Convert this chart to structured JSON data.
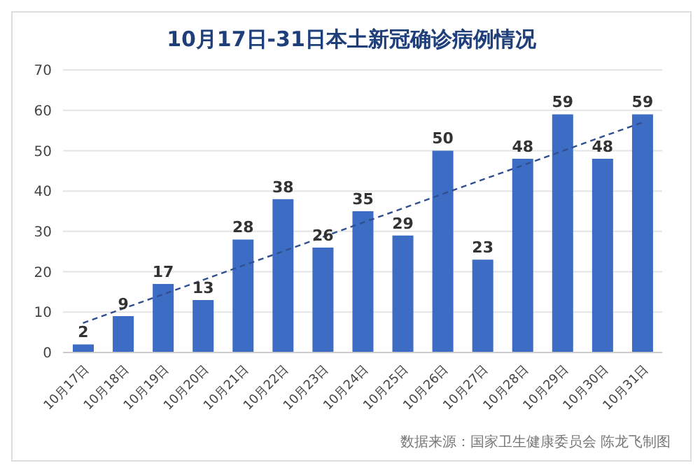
{
  "chart_data": {
    "type": "bar",
    "title": "10月17日-31日本土新冠确诊病例情况",
    "categories": [
      "10月17日",
      "10月18日",
      "10月19日",
      "10月20日",
      "10月21日",
      "10月22日",
      "10月23日",
      "10月24日",
      "10月25日",
      "10月26日",
      "10月27日",
      "10月28日",
      "10月29日",
      "10月30日",
      "10月31日"
    ],
    "series": [
      {
        "color": "#3d6cc4",
        "values": [
          2,
          9,
          17,
          13,
          28,
          38,
          26,
          35,
          29,
          50,
          23,
          48,
          59,
          48,
          59
        ],
        "value_labels": [
          "2",
          "9",
          "17",
          "13",
          "28",
          "38",
          "26",
          "35",
          "29",
          "50",
          "23",
          "48",
          "59",
          "48",
          "59"
        ]
      },
      {
        "type": "line",
        "color": "#2f4f8f",
        "line_style": "dashed",
        "x": [
          "10月17日",
          "10月31日"
        ],
        "values": [
          7.3,
          57
        ]
      }
    ],
    "ylim": [
      0,
      70
    ],
    "yticks": [
      0,
      10,
      20,
      30,
      40,
      50,
      60,
      70
    ],
    "grid": "y",
    "annotations": [
      "数据来源：国家卫生健康委员会    陈龙飞制图"
    ]
  }
}
